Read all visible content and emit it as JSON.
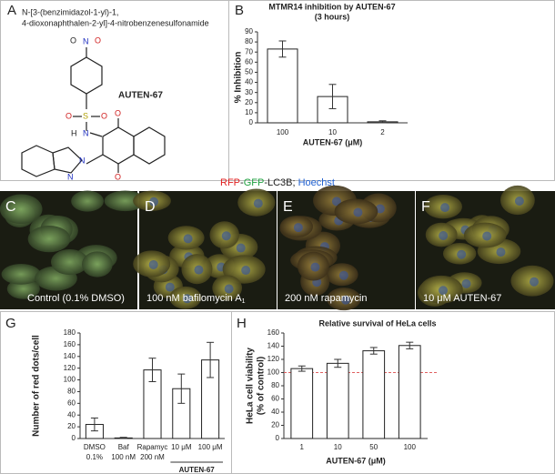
{
  "panel_labels": [
    "A",
    "B",
    "G",
    "H"
  ],
  "compound": {
    "name_lines": [
      "N-[3-(benzimidazol-1-yl)-1,",
      "4-dioxonaphthalen-2-yl]-4-nitrobenzenesulfonamide"
    ],
    "label": "AUTEN-67",
    "atoms": [
      "O",
      "N",
      "O",
      "O",
      "S",
      "O",
      "H",
      "N",
      "O",
      "O",
      "N",
      "N"
    ]
  },
  "microscopy": {
    "header": [
      {
        "text": "RFP",
        "color": "#e02020"
      },
      {
        "text": "-",
        "color": "#222222"
      },
      {
        "text": "GFP",
        "color": "#20a040"
      },
      {
        "text": "-LC3B; ",
        "color": "#222222"
      },
      {
        "text": "Hoechst",
        "color": "#2060d0"
      }
    ],
    "panels": [
      {
        "letter": "C",
        "caption": "Control (0.1%  DMSO)",
        "caption_sub": null
      },
      {
        "letter": "D",
        "caption": "100 nM bafilomycin A",
        "caption_sub": "1"
      },
      {
        "letter": "E",
        "caption": "200 nM rapamycin",
        "caption_sub": null
      },
      {
        "letter": "F",
        "caption": "10 μM AUTEN-67",
        "caption_sub": null
      }
    ]
  },
  "chart_data": [
    {
      "type": "bar",
      "title": "MTMR14 inhibition by AUTEN-67",
      "subtitle": "(3 hours)",
      "ylabel_lines": [
        "% Inhibition"
      ],
      "xlabel": "AUTEN-67 (μM)",
      "categories": [
        "100",
        "10",
        "2"
      ],
      "values": [
        73,
        26,
        1
      ],
      "errors": [
        8,
        12,
        1
      ],
      "color": "#ffffff",
      "ylim": [
        0,
        90
      ],
      "yticks": [
        0,
        10,
        20,
        30,
        40,
        50,
        60,
        70,
        80,
        90
      ]
    },
    {
      "type": "bar",
      "ylabel_lines": [
        "Number of red dots/cell"
      ],
      "categories": [
        "DMSO",
        "Baf",
        "Rapamyc",
        "10 μM",
        "100 μM"
      ],
      "category_sublabels": [
        "0.1%",
        "100 nM",
        "200 nM",
        null,
        null
      ],
      "group_label": "AUTEN-67",
      "values": [
        24,
        1,
        117,
        85,
        134
      ],
      "errors": [
        11,
        1,
        20,
        25,
        30
      ],
      "color": "#ffffff",
      "ylim": [
        0,
        180
      ],
      "yticks": [
        0,
        20,
        40,
        60,
        80,
        100,
        120,
        140,
        160,
        180
      ]
    },
    {
      "type": "bar",
      "title": "Relative survival of HeLa cells",
      "ylabel_lines": [
        "HeLa cell viability",
        "(% of control)"
      ],
      "xlabel": "AUTEN-67 (μM)",
      "categories": [
        "1",
        "10",
        "50",
        "100"
      ],
      "values": [
        106,
        114,
        133,
        141
      ],
      "errors": [
        4,
        6,
        5,
        5
      ],
      "color": "#ffffff",
      "reference_line": {
        "value": 100,
        "color": "#e06060"
      },
      "ylim": [
        0,
        160
      ],
      "yticks": [
        0,
        20,
        40,
        60,
        80,
        100,
        120,
        140,
        160
      ]
    }
  ]
}
